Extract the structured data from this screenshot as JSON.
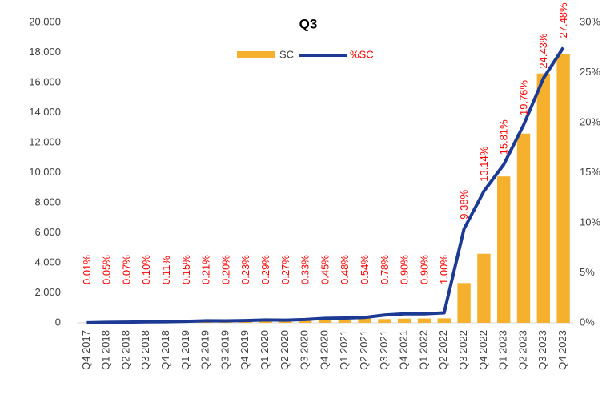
{
  "chart_data": {
    "type": "bar_line",
    "title": "Q3",
    "categories": [
      "Q4 2017",
      "Q1 2018",
      "Q2 2018",
      "Q3 2018",
      "Q4 2018",
      "Q1 2019",
      "Q2 2019",
      "Q3 2019",
      "Q4 2019",
      "Q1 2020",
      "Q2 2020",
      "Q3 2020",
      "Q4 2020",
      "Q1 2021",
      "Q2 2021",
      "Q3 2021",
      "Q4 2021",
      "Q1 2022",
      "Q2 2022",
      "Q3 2022",
      "Q4 2022",
      "Q1 2023",
      "Q2 2023",
      "Q3 2023",
      "Q4 2023"
    ],
    "series": [
      {
        "name": "SC",
        "type": "bar",
        "color": "#f5b02e",
        "values": [
          5,
          30,
          45,
          65,
          70,
          100,
          140,
          130,
          150,
          190,
          175,
          215,
          290,
          310,
          350,
          250,
          280,
          290,
          300,
          2650,
          4600,
          9750,
          12600,
          16600,
          17900
        ]
      },
      {
        "name": "%SC",
        "type": "line",
        "axis": "y2",
        "color": "#1c3a94",
        "values": [
          0.01,
          0.05,
          0.07,
          0.1,
          0.11,
          0.15,
          0.21,
          0.2,
          0.23,
          0.29,
          0.27,
          0.33,
          0.45,
          0.48,
          0.54,
          0.78,
          0.9,
          0.9,
          1.0,
          9.38,
          13.14,
          15.81,
          19.76,
          24.43,
          27.48
        ],
        "value_labels": [
          "0.01%",
          "0.05%",
          "0.07%",
          "0.10%",
          "0.11%",
          "0.15%",
          "0.21%",
          "0.20%",
          "0.23%",
          "0.29%",
          "0.27%",
          "0.33%",
          "0.45%",
          "0.48%",
          "0.54%",
          "0.78%",
          "0.90%",
          "0.90%",
          "1.00%",
          "9.38%",
          "13.14%",
          "15.81%",
          "19.76%",
          "24.43%",
          "27.48%"
        ]
      }
    ],
    "ylim": [
      0,
      20000
    ],
    "yticks": [
      0,
      {
        "value": 2000,
        "label": "2,000"
      },
      {
        "value": 4000,
        "label": "4,000"
      },
      {
        "value": 6000,
        "label": "6,000"
      },
      {
        "value": 8000,
        "label": "8,000"
      },
      {
        "value": 10000,
        "label": "10,000"
      },
      {
        "value": 12000,
        "label": "12,000"
      },
      {
        "value": 14000,
        "label": "14,000"
      },
      {
        "value": 16000,
        "label": "16,000"
      },
      {
        "value": 18000,
        "label": "18,000"
      },
      {
        "value": 20000,
        "label": "20,000"
      }
    ],
    "y2lim": [
      0,
      30
    ],
    "y2ticks": [
      {
        "value": 0,
        "label": "0%"
      },
      {
        "value": 5,
        "label": "5%"
      },
      {
        "value": 10,
        "label": "10%"
      },
      {
        "value": 15,
        "label": "15%"
      },
      {
        "value": 20,
        "label": "20%"
      },
      {
        "value": 25,
        "label": "25%"
      },
      {
        "value": 30,
        "label": "30%"
      }
    ],
    "label_color": "#ff0000",
    "legend": "top"
  }
}
